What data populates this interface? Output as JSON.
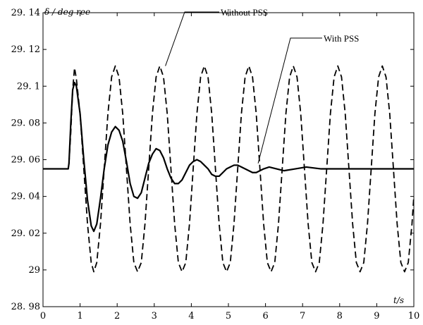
{
  "chart_data": {
    "type": "line",
    "title": "",
    "ylabel": "δ / deg ree",
    "xlabel": "t/s",
    "xlim": [
      0,
      10
    ],
    "ylim": [
      28.98,
      29.14
    ],
    "xticks": [
      0,
      1,
      2,
      3,
      4,
      5,
      6,
      7,
      8,
      9,
      10
    ],
    "yticks": [
      28.98,
      29.0,
      29.02,
      29.04,
      29.06,
      29.08,
      29.1,
      29.12,
      29.14
    ],
    "ytick_labels": [
      "28. 98",
      "29",
      "29. 02",
      "29. 04",
      "29. 06",
      "29. 08",
      "29. 1",
      "29. 12",
      "29. 14"
    ],
    "grid": false,
    "legend": "none",
    "series": [
      {
        "name": "Without PSS",
        "style": "dashed",
        "color": "#000000",
        "points": [
          [
            0,
            29.055
          ],
          [
            0.68,
            29.055
          ],
          [
            0.7,
            29.058
          ],
          [
            0.75,
            29.075
          ],
          [
            0.8,
            29.098
          ],
          [
            0.85,
            29.11
          ],
          [
            0.9,
            29.104
          ],
          [
            1.0,
            29.085
          ],
          [
            1.1,
            29.055
          ],
          [
            1.2,
            29.025
          ],
          [
            1.3,
            29.004
          ],
          [
            1.37,
            28.999
          ],
          [
            1.45,
            29.004
          ],
          [
            1.55,
            29.025
          ],
          [
            1.65,
            29.055
          ],
          [
            1.75,
            29.085
          ],
          [
            1.85,
            29.105
          ],
          [
            1.95,
            29.111
          ],
          [
            2.05,
            29.105
          ],
          [
            2.15,
            29.085
          ],
          [
            2.25,
            29.055
          ],
          [
            2.35,
            29.025
          ],
          [
            2.45,
            29.004
          ],
          [
            2.55,
            28.999
          ],
          [
            2.65,
            29.004
          ],
          [
            2.75,
            29.025
          ],
          [
            2.85,
            29.055
          ],
          [
            2.95,
            29.085
          ],
          [
            3.05,
            29.105
          ],
          [
            3.15,
            29.111
          ],
          [
            3.25,
            29.105
          ],
          [
            3.35,
            29.085
          ],
          [
            3.45,
            29.055
          ],
          [
            3.55,
            29.025
          ],
          [
            3.65,
            29.004
          ],
          [
            3.75,
            28.999
          ],
          [
            3.85,
            29.004
          ],
          [
            3.95,
            29.025
          ],
          [
            4.05,
            29.055
          ],
          [
            4.15,
            29.085
          ],
          [
            4.25,
            29.105
          ],
          [
            4.35,
            29.111
          ],
          [
            4.45,
            29.105
          ],
          [
            4.55,
            29.085
          ],
          [
            4.65,
            29.055
          ],
          [
            4.75,
            29.025
          ],
          [
            4.85,
            29.004
          ],
          [
            4.95,
            28.999
          ],
          [
            5.05,
            29.004
          ],
          [
            5.15,
            29.025
          ],
          [
            5.25,
            29.055
          ],
          [
            5.35,
            29.085
          ],
          [
            5.45,
            29.105
          ],
          [
            5.55,
            29.111
          ],
          [
            5.65,
            29.105
          ],
          [
            5.75,
            29.085
          ],
          [
            5.85,
            29.055
          ],
          [
            5.95,
            29.025
          ],
          [
            6.05,
            29.004
          ],
          [
            6.15,
            28.999
          ],
          [
            6.25,
            29.004
          ],
          [
            6.35,
            29.025
          ],
          [
            6.45,
            29.055
          ],
          [
            6.55,
            29.085
          ],
          [
            6.65,
            29.105
          ],
          [
            6.75,
            29.111
          ],
          [
            6.85,
            29.105
          ],
          [
            6.95,
            29.085
          ],
          [
            7.05,
            29.055
          ],
          [
            7.15,
            29.025
          ],
          [
            7.25,
            29.004
          ],
          [
            7.35,
            28.999
          ],
          [
            7.45,
            29.004
          ],
          [
            7.55,
            29.025
          ],
          [
            7.65,
            29.055
          ],
          [
            7.75,
            29.085
          ],
          [
            7.85,
            29.105
          ],
          [
            7.95,
            29.111
          ],
          [
            8.05,
            29.105
          ],
          [
            8.15,
            29.085
          ],
          [
            8.25,
            29.055
          ],
          [
            8.35,
            29.025
          ],
          [
            8.45,
            29.004
          ],
          [
            8.55,
            28.999
          ],
          [
            8.65,
            29.004
          ],
          [
            8.75,
            29.025
          ],
          [
            8.85,
            29.055
          ],
          [
            8.95,
            29.085
          ],
          [
            9.05,
            29.105
          ],
          [
            9.15,
            29.111
          ],
          [
            9.25,
            29.105
          ],
          [
            9.35,
            29.085
          ],
          [
            9.45,
            29.055
          ],
          [
            9.55,
            29.025
          ],
          [
            9.65,
            29.004
          ],
          [
            9.75,
            28.999
          ],
          [
            9.85,
            29.004
          ],
          [
            9.95,
            29.025
          ],
          [
            10.0,
            29.04
          ]
        ]
      },
      {
        "name": "With PSS",
        "style": "solid",
        "color": "#000000",
        "points": [
          [
            0,
            29.055
          ],
          [
            0.68,
            29.055
          ],
          [
            0.7,
            29.058
          ],
          [
            0.75,
            29.08
          ],
          [
            0.8,
            29.098
          ],
          [
            0.85,
            29.102
          ],
          [
            0.9,
            29.1
          ],
          [
            1.0,
            29.085
          ],
          [
            1.1,
            29.06
          ],
          [
            1.2,
            29.038
          ],
          [
            1.3,
            29.024
          ],
          [
            1.37,
            29.021
          ],
          [
            1.45,
            29.025
          ],
          [
            1.55,
            29.039
          ],
          [
            1.65,
            29.055
          ],
          [
            1.75,
            29.068
          ],
          [
            1.85,
            29.075
          ],
          [
            1.95,
            29.078
          ],
          [
            2.05,
            29.076
          ],
          [
            2.15,
            29.07
          ],
          [
            2.25,
            29.059
          ],
          [
            2.35,
            29.047
          ],
          [
            2.45,
            29.04
          ],
          [
            2.55,
            29.039
          ],
          [
            2.65,
            29.042
          ],
          [
            2.75,
            29.05
          ],
          [
            2.85,
            29.058
          ],
          [
            2.95,
            29.063
          ],
          [
            3.05,
            29.066
          ],
          [
            3.15,
            29.065
          ],
          [
            3.25,
            29.061
          ],
          [
            3.35,
            29.055
          ],
          [
            3.45,
            29.05
          ],
          [
            3.55,
            29.047
          ],
          [
            3.65,
            29.047
          ],
          [
            3.75,
            29.049
          ],
          [
            3.85,
            29.053
          ],
          [
            3.95,
            29.057
          ],
          [
            4.05,
            29.059
          ],
          [
            4.15,
            29.06
          ],
          [
            4.25,
            29.059
          ],
          [
            4.35,
            29.057
          ],
          [
            4.45,
            29.055
          ],
          [
            4.55,
            29.052
          ],
          [
            4.65,
            29.051
          ],
          [
            4.75,
            29.051
          ],
          [
            4.85,
            29.053
          ],
          [
            4.95,
            29.055
          ],
          [
            5.05,
            29.056
          ],
          [
            5.15,
            29.057
          ],
          [
            5.25,
            29.057
          ],
          [
            5.35,
            29.056
          ],
          [
            5.45,
            29.055
          ],
          [
            5.55,
            29.054
          ],
          [
            5.65,
            29.053
          ],
          [
            5.75,
            29.053
          ],
          [
            5.85,
            29.054
          ],
          [
            5.95,
            29.055
          ],
          [
            6.1,
            29.056
          ],
          [
            6.3,
            29.055
          ],
          [
            6.5,
            29.054
          ],
          [
            6.8,
            29.055
          ],
          [
            7.1,
            29.056
          ],
          [
            7.5,
            29.055
          ],
          [
            7.9,
            29.055
          ],
          [
            8.3,
            29.055
          ],
          [
            8.7,
            29.055
          ],
          [
            9.1,
            29.055
          ],
          [
            9.5,
            29.055
          ],
          [
            10.0,
            29.055
          ]
        ]
      }
    ],
    "annotations": [
      {
        "text": "Without PSS",
        "target": [
          3.3,
          29.111
        ]
      },
      {
        "text": "With PSS",
        "target": [
          5.8,
          29.058
        ]
      }
    ]
  }
}
